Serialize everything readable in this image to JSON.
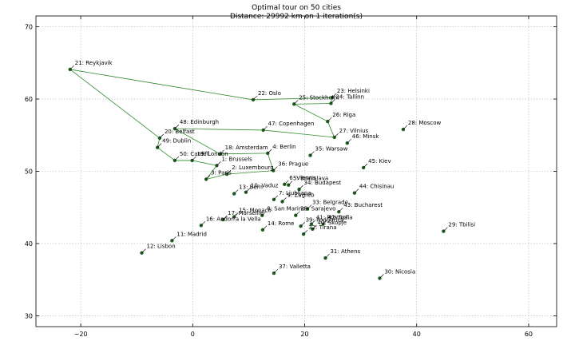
{
  "chart_data": {
    "type": "line",
    "title": "Optimal tour on 50 cities",
    "subtitle": "Distance: 29992 km on 1 iteration(s)",
    "xlim": [
      -28,
      65
    ],
    "ylim": [
      28.5,
      71.5
    ],
    "xticks": [
      -20,
      0,
      20,
      40,
      60
    ],
    "yticks": [
      30,
      40,
      50,
      60,
      70
    ],
    "grid": true,
    "route_color": "#2e8b2e",
    "point_color": "#1f5f1f",
    "cities": [
      {
        "label": "1: Brussels",
        "x": 4.3,
        "y": 50.8
      },
      {
        "label": "2: Luxembourg",
        "x": 6.1,
        "y": 49.6
      },
      {
        "label": "3: Paris",
        "x": 2.4,
        "y": 48.9
      },
      {
        "label": "4: Berlin",
        "x": 13.4,
        "y": 52.5
      },
      {
        "label": "5: Bratislava",
        "x": 17.1,
        "y": 48.1
      },
      {
        "label": "6: Vienna",
        "x": 16.4,
        "y": 48.2
      },
      {
        "label": "7: Ljubljana",
        "x": 14.5,
        "y": 46.1
      },
      {
        "label": "8: San Marino",
        "x": 12.4,
        "y": 43.9
      },
      {
        "label": "9: Zagreb",
        "x": 16.0,
        "y": 45.8
      },
      {
        "label": "10: Vaduz",
        "x": 9.5,
        "y": 47.1
      },
      {
        "label": "11: Madrid",
        "x": -3.7,
        "y": 40.4
      },
      {
        "label": "12: Lisbon",
        "x": -9.1,
        "y": 38.7
      },
      {
        "label": "13: Bern",
        "x": 7.4,
        "y": 46.9
      },
      {
        "label": "14: Rome",
        "x": 12.5,
        "y": 41.9
      },
      {
        "label": "15: Monaco",
        "x": 7.4,
        "y": 43.7
      },
      {
        "label": "16: Andorra la Vella",
        "x": 1.5,
        "y": 42.5
      },
      {
        "label": "17: Marseille",
        "x": 5.4,
        "y": 43.3
      },
      {
        "label": "18: Amsterdam",
        "x": 4.9,
        "y": 52.4
      },
      {
        "label": "19: London",
        "x": -0.1,
        "y": 51.5
      },
      {
        "label": "20: Belfast",
        "x": -5.9,
        "y": 54.6
      },
      {
        "label": "21: Reykjavik",
        "x": -21.9,
        "y": 64.1
      },
      {
        "label": "22: Oslo",
        "x": 10.8,
        "y": 59.9
      },
      {
        "label": "23: Helsinki",
        "x": 24.9,
        "y": 60.2
      },
      {
        "label": "24: Tallinn",
        "x": 24.7,
        "y": 59.4
      },
      {
        "label": "25: Stockholm",
        "x": 18.1,
        "y": 59.3
      },
      {
        "label": "26: Riga",
        "x": 24.1,
        "y": 56.9
      },
      {
        "label": "27: Vilnius",
        "x": 25.3,
        "y": 54.7
      },
      {
        "label": "28: Moscow",
        "x": 37.6,
        "y": 55.8
      },
      {
        "label": "29: Tbilisi",
        "x": 44.8,
        "y": 41.7
      },
      {
        "label": "30: Nicosia",
        "x": 33.4,
        "y": 35.2
      },
      {
        "label": "31: Athens",
        "x": 23.7,
        "y": 38.0
      },
      {
        "label": "32: Tirana",
        "x": 19.8,
        "y": 41.3
      },
      {
        "label": "33: Belgrade",
        "x": 20.5,
        "y": 44.8
      },
      {
        "label": "34: Budapest",
        "x": 19.0,
        "y": 47.5
      },
      {
        "label": "35: Warsaw",
        "x": 21.0,
        "y": 52.2
      },
      {
        "label": "36: Prague",
        "x": 14.4,
        "y": 50.1
      },
      {
        "label": "37: Valletta",
        "x": 14.5,
        "y": 35.9
      },
      {
        "label": "38: Sarajevo",
        "x": 18.4,
        "y": 43.9
      },
      {
        "label": "39: Podgorica",
        "x": 19.3,
        "y": 42.4
      },
      {
        "label": "40: Skopje",
        "x": 21.4,
        "y": 42.0
      },
      {
        "label": "41: Pristina",
        "x": 21.2,
        "y": 42.7
      },
      {
        "label": "42: Sofia",
        "x": 23.3,
        "y": 42.7
      },
      {
        "label": "43: Bucharest",
        "x": 26.1,
        "y": 44.4
      },
      {
        "label": "44: Chisinau",
        "x": 28.9,
        "y": 47.0
      },
      {
        "label": "45: Kiev",
        "x": 30.5,
        "y": 50.5
      },
      {
        "label": "46: Minsk",
        "x": 27.6,
        "y": 53.9
      },
      {
        "label": "47: Copenhagen",
        "x": 12.6,
        "y": 55.7
      },
      {
        "label": "48: Edinburgh",
        "x": -3.2,
        "y": 55.9
      },
      {
        "label": "49: Dublin",
        "x": -6.3,
        "y": 53.3
      },
      {
        "label": "50: Cardiff",
        "x": -3.2,
        "y": 51.5
      }
    ],
    "tour": [
      21,
      20,
      49,
      50,
      19,
      1,
      3,
      2,
      36,
      4,
      18,
      48,
      47,
      27,
      26,
      25,
      24,
      23,
      22,
      21
    ]
  }
}
